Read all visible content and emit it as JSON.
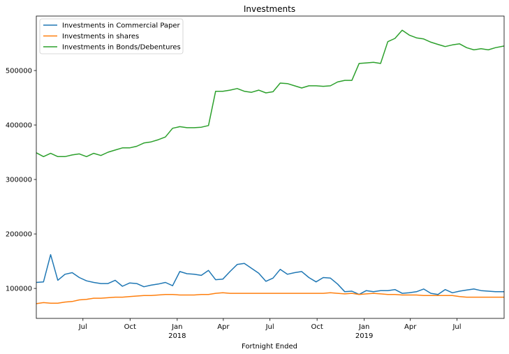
{
  "chart_data": {
    "type": "line",
    "title": "Investments",
    "xlabel": "Fortnight Ended",
    "ylabel": "",
    "xlim": [
      "2017-04-01",
      "2019-10-01"
    ],
    "ylim": [
      45000,
      600000
    ],
    "grid": false,
    "legend_position": "top-left",
    "y_ticks": [
      100000,
      200000,
      300000,
      400000,
      500000
    ],
    "y_tick_labels": [
      "100000",
      "200000",
      "300000",
      "400000",
      "500000"
    ],
    "x_ticks": [
      {
        "date": "2017-07-01",
        "label": "Jul",
        "sub": ""
      },
      {
        "date": "2017-10-01",
        "label": "Oct",
        "sub": ""
      },
      {
        "date": "2018-01-01",
        "label": "Jan",
        "sub": "2018"
      },
      {
        "date": "2018-04-01",
        "label": "Apr",
        "sub": ""
      },
      {
        "date": "2018-07-01",
        "label": "Jul",
        "sub": ""
      },
      {
        "date": "2018-10-01",
        "label": "Oct",
        "sub": ""
      },
      {
        "date": "2019-01-01",
        "label": "Jan",
        "sub": "2019"
      },
      {
        "date": "2019-04-01",
        "label": "Apr",
        "sub": ""
      },
      {
        "date": "2019-07-01",
        "label": "Jul",
        "sub": ""
      }
    ],
    "series": [
      {
        "name": "Investments in Commercial Paper",
        "color": "#1f77b4",
        "points": [
          [
            "2017-04-01",
            111000
          ],
          [
            "2017-04-15",
            112000
          ],
          [
            "2017-04-29",
            162000
          ],
          [
            "2017-05-13",
            115000
          ],
          [
            "2017-05-27",
            126000
          ],
          [
            "2017-06-10",
            129000
          ],
          [
            "2017-06-24",
            120000
          ],
          [
            "2017-07-08",
            114000
          ],
          [
            "2017-07-22",
            111000
          ],
          [
            "2017-08-05",
            109000
          ],
          [
            "2017-08-19",
            109000
          ],
          [
            "2017-09-02",
            115000
          ],
          [
            "2017-09-16",
            104000
          ],
          [
            "2017-09-30",
            110000
          ],
          [
            "2017-10-14",
            109000
          ],
          [
            "2017-10-28",
            103000
          ],
          [
            "2017-11-11",
            106000
          ],
          [
            "2017-11-25",
            108000
          ],
          [
            "2017-12-09",
            111000
          ],
          [
            "2017-12-23",
            105000
          ],
          [
            "2018-01-06",
            131000
          ],
          [
            "2018-01-20",
            127000
          ],
          [
            "2018-02-03",
            126000
          ],
          [
            "2018-02-17",
            124000
          ],
          [
            "2018-03-03",
            133000
          ],
          [
            "2018-03-17",
            116000
          ],
          [
            "2018-03-31",
            117000
          ],
          [
            "2018-04-14",
            131000
          ],
          [
            "2018-04-28",
            144000
          ],
          [
            "2018-05-12",
            146000
          ],
          [
            "2018-05-26",
            137000
          ],
          [
            "2018-06-09",
            128000
          ],
          [
            "2018-06-23",
            113000
          ],
          [
            "2018-07-07",
            119000
          ],
          [
            "2018-07-21",
            135000
          ],
          [
            "2018-08-04",
            126000
          ],
          [
            "2018-08-18",
            129000
          ],
          [
            "2018-09-01",
            131000
          ],
          [
            "2018-09-15",
            120000
          ],
          [
            "2018-09-29",
            112000
          ],
          [
            "2018-10-13",
            120000
          ],
          [
            "2018-10-27",
            119000
          ],
          [
            "2018-11-10",
            108000
          ],
          [
            "2018-11-24",
            94000
          ],
          [
            "2018-12-08",
            95000
          ],
          [
            "2018-12-22",
            89000
          ],
          [
            "2019-01-05",
            96000
          ],
          [
            "2019-01-19",
            94000
          ],
          [
            "2019-02-02",
            96000
          ],
          [
            "2019-02-16",
            96000
          ],
          [
            "2019-03-02",
            98000
          ],
          [
            "2019-03-16",
            91000
          ],
          [
            "2019-03-30",
            92000
          ],
          [
            "2019-04-13",
            94000
          ],
          [
            "2019-04-27",
            99000
          ],
          [
            "2019-05-11",
            91000
          ],
          [
            "2019-05-25",
            89000
          ],
          [
            "2019-06-08",
            98000
          ],
          [
            "2019-06-22",
            92000
          ],
          [
            "2019-07-06",
            95000
          ],
          [
            "2019-07-20",
            97000
          ],
          [
            "2019-08-03",
            99000
          ],
          [
            "2019-08-17",
            96000
          ],
          [
            "2019-08-31",
            95000
          ],
          [
            "2019-09-14",
            94000
          ],
          [
            "2019-10-01",
            94000
          ]
        ]
      },
      {
        "name": "Investments in shares",
        "color": "#ff7f0e",
        "points": [
          [
            "2017-04-01",
            72000
          ],
          [
            "2017-04-15",
            74000
          ],
          [
            "2017-04-29",
            73000
          ],
          [
            "2017-05-13",
            73000
          ],
          [
            "2017-05-27",
            75000
          ],
          [
            "2017-06-10",
            76000
          ],
          [
            "2017-06-24",
            79000
          ],
          [
            "2017-07-08",
            80000
          ],
          [
            "2017-07-22",
            82000
          ],
          [
            "2017-08-05",
            82000
          ],
          [
            "2017-08-19",
            83000
          ],
          [
            "2017-09-02",
            84000
          ],
          [
            "2017-09-16",
            84000
          ],
          [
            "2017-09-30",
            85000
          ],
          [
            "2017-10-14",
            86000
          ],
          [
            "2017-10-28",
            87000
          ],
          [
            "2017-11-11",
            87000
          ],
          [
            "2017-11-25",
            88000
          ],
          [
            "2017-12-09",
            89000
          ],
          [
            "2017-12-23",
            89000
          ],
          [
            "2018-01-06",
            88000
          ],
          [
            "2018-01-20",
            88000
          ],
          [
            "2018-02-03",
            88000
          ],
          [
            "2018-02-17",
            89000
          ],
          [
            "2018-03-03",
            89000
          ],
          [
            "2018-03-17",
            91000
          ],
          [
            "2018-03-31",
            92000
          ],
          [
            "2018-04-14",
            91000
          ],
          [
            "2018-04-28",
            91000
          ],
          [
            "2018-05-12",
            91000
          ],
          [
            "2018-05-26",
            91000
          ],
          [
            "2018-06-09",
            91000
          ],
          [
            "2018-06-23",
            91000
          ],
          [
            "2018-07-07",
            91000
          ],
          [
            "2018-07-21",
            91000
          ],
          [
            "2018-08-04",
            91000
          ],
          [
            "2018-08-18",
            91000
          ],
          [
            "2018-09-01",
            91000
          ],
          [
            "2018-09-15",
            91000
          ],
          [
            "2018-09-29",
            91000
          ],
          [
            "2018-10-13",
            91000
          ],
          [
            "2018-10-27",
            92000
          ],
          [
            "2018-11-10",
            91000
          ],
          [
            "2018-11-24",
            90000
          ],
          [
            "2018-12-08",
            91000
          ],
          [
            "2018-12-22",
            89000
          ],
          [
            "2019-01-05",
            90000
          ],
          [
            "2019-01-19",
            91000
          ],
          [
            "2019-02-02",
            90000
          ],
          [
            "2019-02-16",
            89000
          ],
          [
            "2019-03-02",
            89000
          ],
          [
            "2019-03-16",
            88000
          ],
          [
            "2019-03-30",
            88000
          ],
          [
            "2019-04-13",
            88000
          ],
          [
            "2019-04-27",
            87000
          ],
          [
            "2019-05-11",
            87000
          ],
          [
            "2019-05-25",
            87000
          ],
          [
            "2019-06-08",
            87000
          ],
          [
            "2019-06-22",
            87000
          ],
          [
            "2019-07-06",
            85000
          ],
          [
            "2019-07-20",
            84000
          ],
          [
            "2019-08-03",
            84000
          ],
          [
            "2019-08-17",
            84000
          ],
          [
            "2019-08-31",
            84000
          ],
          [
            "2019-09-14",
            84000
          ],
          [
            "2019-10-01",
            84000
          ]
        ]
      },
      {
        "name": "Investments in Bonds/Debentures",
        "color": "#2ca02c",
        "points": [
          [
            "2017-04-01",
            349000
          ],
          [
            "2017-04-15",
            342000
          ],
          [
            "2017-04-29",
            348000
          ],
          [
            "2017-05-13",
            342000
          ],
          [
            "2017-05-27",
            342000
          ],
          [
            "2017-06-10",
            345000
          ],
          [
            "2017-06-24",
            347000
          ],
          [
            "2017-07-08",
            342000
          ],
          [
            "2017-07-22",
            348000
          ],
          [
            "2017-08-05",
            344000
          ],
          [
            "2017-08-19",
            350000
          ],
          [
            "2017-09-02",
            354000
          ],
          [
            "2017-09-16",
            358000
          ],
          [
            "2017-09-30",
            358000
          ],
          [
            "2017-10-14",
            361000
          ],
          [
            "2017-10-28",
            367000
          ],
          [
            "2017-11-11",
            369000
          ],
          [
            "2017-11-25",
            373000
          ],
          [
            "2017-12-09",
            378000
          ],
          [
            "2017-12-23",
            394000
          ],
          [
            "2018-01-06",
            397000
          ],
          [
            "2018-01-20",
            395000
          ],
          [
            "2018-02-03",
            395000
          ],
          [
            "2018-02-17",
            396000
          ],
          [
            "2018-03-03",
            399000
          ],
          [
            "2018-03-17",
            462000
          ],
          [
            "2018-03-31",
            462000
          ],
          [
            "2018-04-14",
            464000
          ],
          [
            "2018-04-28",
            467000
          ],
          [
            "2018-05-12",
            462000
          ],
          [
            "2018-05-26",
            460000
          ],
          [
            "2018-06-09",
            464000
          ],
          [
            "2018-06-23",
            459000
          ],
          [
            "2018-07-07",
            461000
          ],
          [
            "2018-07-21",
            477000
          ],
          [
            "2018-08-04",
            476000
          ],
          [
            "2018-08-18",
            472000
          ],
          [
            "2018-09-01",
            468000
          ],
          [
            "2018-09-15",
            472000
          ],
          [
            "2018-09-29",
            472000
          ],
          [
            "2018-10-13",
            471000
          ],
          [
            "2018-10-27",
            472000
          ],
          [
            "2018-11-10",
            479000
          ],
          [
            "2018-11-24",
            482000
          ],
          [
            "2018-12-08",
            482000
          ],
          [
            "2018-12-22",
            513000
          ],
          [
            "2019-01-05",
            514000
          ],
          [
            "2019-01-19",
            515000
          ],
          [
            "2019-02-02",
            513000
          ],
          [
            "2019-02-16",
            553000
          ],
          [
            "2019-03-02",
            559000
          ],
          [
            "2019-03-16",
            574000
          ],
          [
            "2019-03-30",
            565000
          ],
          [
            "2019-04-13",
            560000
          ],
          [
            "2019-04-27",
            558000
          ],
          [
            "2019-05-11",
            552000
          ],
          [
            "2019-05-25",
            548000
          ],
          [
            "2019-06-08",
            544000
          ],
          [
            "2019-06-22",
            547000
          ],
          [
            "2019-07-06",
            549000
          ],
          [
            "2019-07-20",
            542000
          ],
          [
            "2019-08-03",
            538000
          ],
          [
            "2019-08-17",
            540000
          ],
          [
            "2019-08-31",
            538000
          ],
          [
            "2019-09-14",
            542000
          ],
          [
            "2019-10-01",
            545000
          ]
        ]
      }
    ]
  }
}
